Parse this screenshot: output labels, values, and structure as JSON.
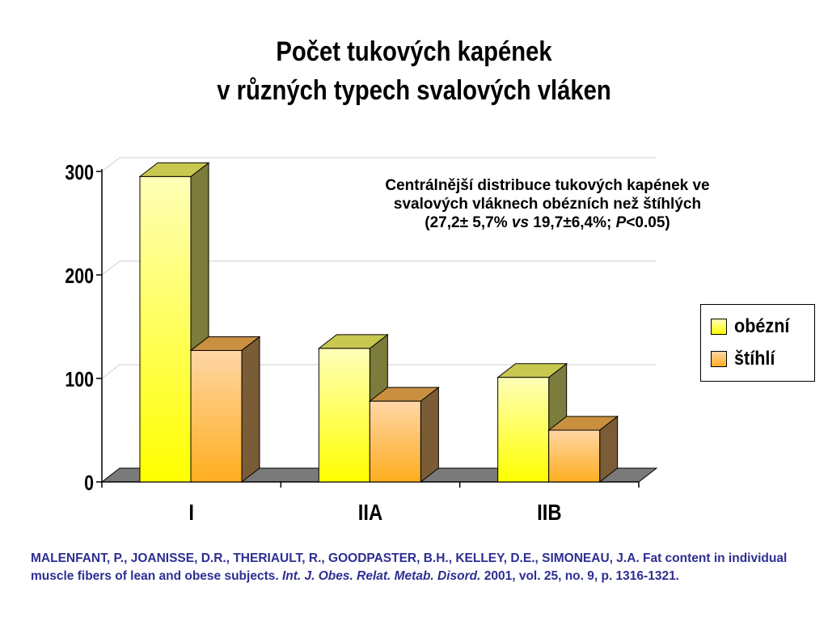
{
  "title": {
    "line1": "Počet tukových kapének",
    "line2": "v různých typech svalových vláken"
  },
  "annotation": {
    "line1": "Centrálnější distribuce tukových kapének ve",
    "line2": "svalových vláknech obézních než štíhlých",
    "line3_part1": "(27,2± 5,7% ",
    "line3_vs": "vs",
    "line3_part2": " 19,7±6,4%; ",
    "line3_p": "P",
    "line3_part3": "<0.05)"
  },
  "legend": {
    "items": [
      {
        "label": "obézní",
        "color": "#ffff00"
      },
      {
        "label": "štíhlí",
        "color": "#ffa500"
      }
    ]
  },
  "citation": {
    "authors": "MALENFANT, P., JOANISSE, D.R., THERIAULT, R., GOODPASTER, B.H., KELLEY, D.E., SIMONEAU, J.A. Fat content in individual muscle fibers of lean and obese subjects. ",
    "journal": "Int. J. Obes. Relat. Metab. Disord.",
    "details": " 2001, vol. 25, no. 9, p. 1316-1321."
  },
  "colors": {
    "text": "#000000",
    "citation": "#2e2e93",
    "gridline": "#cfcfcf",
    "floor": "#7a7a7a"
  },
  "chart_data": {
    "type": "bar",
    "style": "3d-clustered",
    "categories": [
      "I",
      "IIA",
      "IIB"
    ],
    "series": [
      {
        "name": "obézní",
        "values": [
          295,
          129,
          101
        ]
      },
      {
        "name": "štíhlí",
        "values": [
          127,
          78,
          50
        ]
      }
    ],
    "ylim": [
      0,
      300
    ],
    "yticks": [
      "0",
      "100",
      "200",
      "300"
    ],
    "grid": true,
    "legend_position": "right"
  }
}
